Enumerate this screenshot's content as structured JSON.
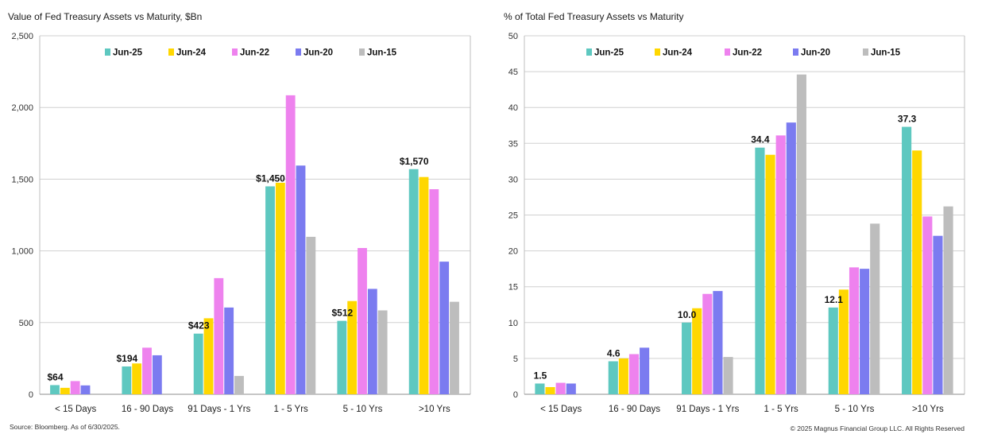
{
  "footer": {
    "source": "Source: Bloomberg. As of 6/30/2025.",
    "copyright": "© 2025 Magnus Financial Group LLC. All Rights Reserved"
  },
  "chart_data": [
    {
      "type": "bar",
      "title": "Value of Fed Treasury Assets vs Maturity, $Bn",
      "xlabel": "",
      "ylabel": "",
      "ylim": [
        0,
        2500
      ],
      "yticks": [
        0,
        500,
        1000,
        1500,
        2000,
        2500
      ],
      "ytick_labels": [
        "0",
        "500",
        "1,000",
        "1,500",
        "2,000",
        "2,500"
      ],
      "grid": true,
      "legend_position": "top",
      "categories": [
        "< 15 Days",
        "16 - 90 Days",
        "91 Days - 1 Yrs",
        "1 - 5 Yrs",
        "5 - 10 Yrs",
        ">10 Yrs"
      ],
      "series": [
        {
          "name": "Jun-25",
          "color": "#5ec8c0",
          "values": [
            64,
            194,
            423,
            1450,
            512,
            1570
          ]
        },
        {
          "name": "Jun-24",
          "color": "#ffd700",
          "values": [
            45,
            215,
            530,
            1475,
            650,
            1515
          ]
        },
        {
          "name": "Jun-22",
          "color": "#ee82ee",
          "values": [
            92,
            325,
            810,
            2085,
            1020,
            1430
          ]
        },
        {
          "name": "Jun-20",
          "color": "#7b7bf0",
          "values": [
            62,
            272,
            605,
            1595,
            735,
            925
          ]
        },
        {
          "name": "Jun-15",
          "color": "#bdbdbd",
          "values": [
            0,
            0,
            128,
            1098,
            585,
            645
          ]
        }
      ],
      "data_labels": [
        "$64",
        "$194",
        "$423",
        "$1,450",
        "$512",
        "$1,570"
      ]
    },
    {
      "type": "bar",
      "title": "% of Total Fed Treasury Assets vs Maturity",
      "xlabel": "",
      "ylabel": "",
      "ylim": [
        0,
        50
      ],
      "yticks": [
        0,
        5,
        10,
        15,
        20,
        25,
        30,
        35,
        40,
        45,
        50
      ],
      "ytick_labels": [
        "0",
        "5",
        "10",
        "15",
        "20",
        "25",
        "30",
        "35",
        "40",
        "45",
        "50"
      ],
      "grid": true,
      "legend_position": "top",
      "categories": [
        "< 15 Days",
        "16 - 90 Days",
        "91 Days - 1 Yrs",
        "1 - 5 Yrs",
        "5 - 10 Yrs",
        ">10 Yrs"
      ],
      "series": [
        {
          "name": "Jun-25",
          "color": "#5ec8c0",
          "values": [
            1.5,
            4.6,
            10.0,
            34.4,
            12.1,
            37.3
          ]
        },
        {
          "name": "Jun-24",
          "color": "#ffd700",
          "values": [
            1.0,
            5.0,
            12.0,
            33.4,
            14.6,
            34.0
          ]
        },
        {
          "name": "Jun-22",
          "color": "#ee82ee",
          "values": [
            1.6,
            5.6,
            14.0,
            36.1,
            17.7,
            24.8
          ]
        },
        {
          "name": "Jun-20",
          "color": "#7b7bf0",
          "values": [
            1.5,
            6.5,
            14.4,
            37.9,
            17.5,
            22.1
          ]
        },
        {
          "name": "Jun-15",
          "color": "#bdbdbd",
          "values": [
            0,
            0,
            5.2,
            44.6,
            23.8,
            26.2
          ]
        }
      ],
      "data_labels": [
        "1.5",
        "4.6",
        "10.0",
        "34.4",
        "12.1",
        "37.3"
      ]
    }
  ]
}
